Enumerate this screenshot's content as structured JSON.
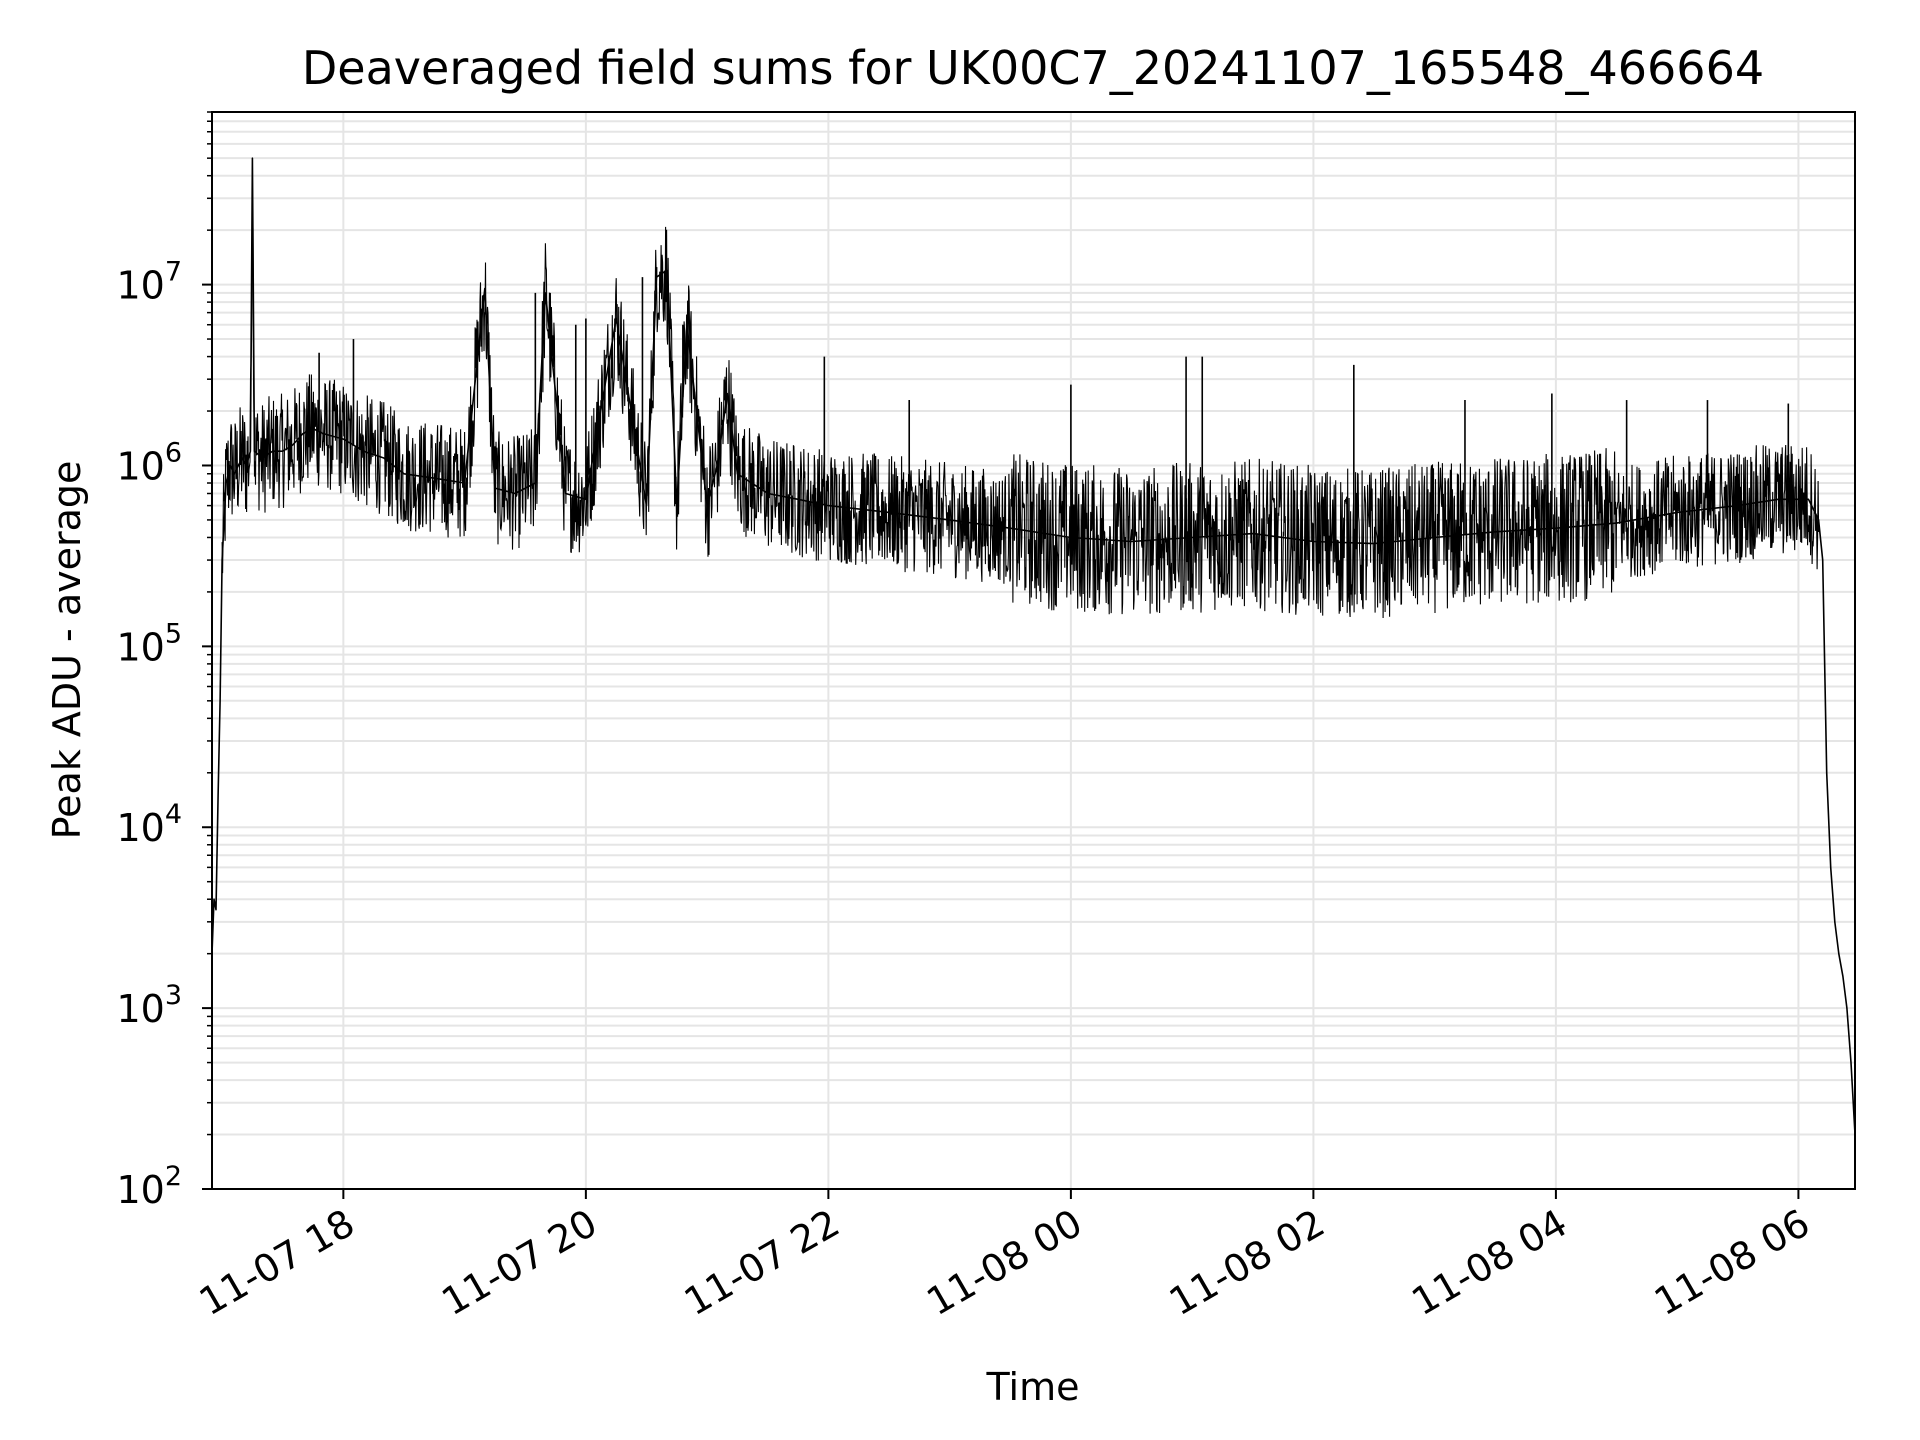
{
  "chart_data": {
    "type": "line",
    "title": "Deaveraged field sums for UK00C7_20241107_165548_466664",
    "xlabel": "Time",
    "ylabel": "Peak ADU - average",
    "yscale": "log",
    "ylim": [
      100,
      90000000
    ],
    "xlim": [
      "2024-11-07 16:55",
      "2024-11-08 06:28"
    ],
    "x_ticks": [
      {
        "t": "2024-11-07 18:00",
        "label": "11-07 18"
      },
      {
        "t": "2024-11-07 20:00",
        "label": "11-07 20"
      },
      {
        "t": "2024-11-07 22:00",
        "label": "11-07 22"
      },
      {
        "t": "2024-11-08 00:00",
        "label": "11-08 00"
      },
      {
        "t": "2024-11-08 02:00",
        "label": "11-08 02"
      },
      {
        "t": "2024-11-08 04:00",
        "label": "11-08 04"
      },
      {
        "t": "2024-11-08 06:00",
        "label": "11-08 06"
      }
    ],
    "y_ticks": [
      {
        "v": 100,
        "label": "10",
        "exp": "2"
      },
      {
        "v": 1000,
        "label": "10",
        "exp": "3"
      },
      {
        "v": 10000,
        "label": "10",
        "exp": "4"
      },
      {
        "v": 100000,
        "label": "10",
        "exp": "5"
      },
      {
        "v": 1000000,
        "label": "10",
        "exp": "6"
      },
      {
        "v": 10000000,
        "label": "10",
        "exp": "7"
      }
    ],
    "grid": true,
    "line_color": "#000000",
    "grid_color": "#e5e5e5",
    "series": [
      {
        "x": [
          "2024-11-07 16:55",
          "2024-11-07 16:56",
          "2024-11-07 16:57",
          "2024-11-07 16:58",
          "2024-11-07 16:59",
          "2024-11-07 17:00",
          "2024-11-07 17:02",
          "2024-11-07 17:04",
          "2024-11-07 17:06",
          "2024-11-07 17:08",
          "2024-11-07 17:10",
          "2024-11-07 17:12",
          "2024-11-07 17:14",
          "2024-11-07 17:15",
          "2024-11-07 17:16",
          "2024-11-07 17:20",
          "2024-11-07 17:25",
          "2024-11-07 17:30",
          "2024-11-07 17:35",
          "2024-11-07 17:40",
          "2024-11-07 17:45",
          "2024-11-07 17:50",
          "2024-11-07 18:00",
          "2024-11-07 18:10",
          "2024-11-07 18:20",
          "2024-11-07 18:30",
          "2024-11-07 18:45",
          "2024-11-07 19:00",
          "2024-11-07 19:10",
          "2024-11-07 19:15",
          "2024-11-07 19:25",
          "2024-11-07 19:35",
          "2024-11-07 19:40",
          "2024-11-07 19:50",
          "2024-11-07 20:00",
          "2024-11-07 20:15",
          "2024-11-07 20:30",
          "2024-11-07 20:35",
          "2024-11-07 20:40",
          "2024-11-07 20:45",
          "2024-11-07 20:50",
          "2024-11-07 21:00",
          "2024-11-07 21:05",
          "2024-11-07 21:10",
          "2024-11-07 21:15",
          "2024-11-07 21:30",
          "2024-11-07 21:45",
          "2024-11-07 22:00",
          "2024-11-07 22:30",
          "2024-11-07 23:00",
          "2024-11-07 23:30",
          "2024-11-08 00:00",
          "2024-11-08 00:30",
          "2024-11-08 01:00",
          "2024-11-08 01:30",
          "2024-11-08 02:00",
          "2024-11-08 02:30",
          "2024-11-08 03:00",
          "2024-11-08 03:30",
          "2024-11-08 04:00",
          "2024-11-08 04:30",
          "2024-11-08 05:00",
          "2024-11-08 05:30",
          "2024-11-08 05:50",
          "2024-11-08 06:05",
          "2024-11-08 06:10",
          "2024-11-08 06:12",
          "2024-11-08 06:14",
          "2024-11-08 06:16",
          "2024-11-08 06:18",
          "2024-11-08 06:20",
          "2024-11-08 06:22",
          "2024-11-08 06:24",
          "2024-11-08 06:26",
          "2024-11-08 06:28"
        ],
        "y": [
          2000,
          4000,
          3500,
          15000,
          50000,
          300000,
          800000,
          1000000,
          900000,
          1000000,
          1100000,
          1000000,
          1200000,
          50000000,
          1200000,
          1100000,
          1200000,
          1200000,
          1300000,
          1500000,
          1600000,
          1500000,
          1400000,
          1200000,
          1100000,
          900000,
          850000,
          800000,
          9500000,
          750000,
          700000,
          800000,
          9000000,
          700000,
          650000,
          6500000,
          600000,
          11000000,
          12000000,
          600000,
          6000000,
          600000,
          1000000,
          2500000,
          900000,
          700000,
          650000,
          600000,
          550000,
          500000,
          450000,
          400000,
          380000,
          400000,
          420000,
          380000,
          370000,
          400000,
          430000,
          450000,
          480000,
          550000,
          600000,
          650000,
          650000,
          500000,
          300000,
          20000,
          6000,
          3000,
          2000,
          1500,
          1000,
          500,
          200
        ]
      }
    ],
    "spikes": [
      {
        "x": "2024-11-07 17:15",
        "y": 50000000
      },
      {
        "x": "2024-11-07 17:48",
        "y": 4200000
      },
      {
        "x": "2024-11-07 18:05",
        "y": 5000000
      },
      {
        "x": "2024-11-07 19:10",
        "y": 9500000
      },
      {
        "x": "2024-11-07 19:35",
        "y": 9000000
      },
      {
        "x": "2024-11-07 19:55",
        "y": 6000000
      },
      {
        "x": "2024-11-07 20:00",
        "y": 6500000
      },
      {
        "x": "2024-11-07 20:28",
        "y": 11000000
      },
      {
        "x": "2024-11-07 20:35",
        "y": 12500000
      },
      {
        "x": "2024-11-07 20:48",
        "y": 6000000
      },
      {
        "x": "2024-11-07 21:58",
        "y": 4000000
      },
      {
        "x": "2024-11-07 22:40",
        "y": 2300000
      },
      {
        "x": "2024-11-08 00:00",
        "y": 2800000
      },
      {
        "x": "2024-11-08 00:57",
        "y": 4000000
      },
      {
        "x": "2024-11-08 01:05",
        "y": 4000000
      },
      {
        "x": "2024-11-08 02:20",
        "y": 3600000
      },
      {
        "x": "2024-11-08 03:15",
        "y": 2300000
      },
      {
        "x": "2024-11-08 03:58",
        "y": 2500000
      },
      {
        "x": "2024-11-08 04:35",
        "y": 2300000
      },
      {
        "x": "2024-11-08 05:15",
        "y": 2300000
      },
      {
        "x": "2024-11-08 05:55",
        "y": 2200000
      }
    ]
  }
}
